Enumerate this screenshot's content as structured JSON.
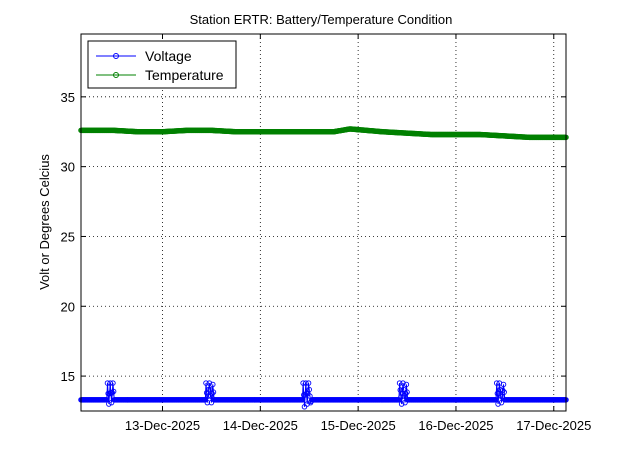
{
  "chart_data": {
    "type": "line",
    "title": "Station ERTR: Battery/Temperature Condition",
    "xlabel": "",
    "ylabel": "Volt or Degrees Celcius",
    "xlim": [
      "2025-12-12T04:00",
      "2025-12-17T03:00"
    ],
    "ylim": [
      12.5,
      39.5
    ],
    "x_ticks": [
      "13-Dec-2025",
      "14-Dec-2025",
      "15-Dec-2025",
      "16-Dec-2025",
      "17-Dec-2025"
    ],
    "y_ticks": [
      15,
      20,
      25,
      30,
      35
    ],
    "grid": true,
    "legend_position": "top-left",
    "colors": {
      "Voltage": "#0000ff",
      "Temperature": "#008000"
    },
    "series": [
      {
        "name": "Voltage",
        "baseline": 13.3,
        "points": [
          [
            "2025-12-12T04:00",
            13.3
          ],
          [
            "2025-12-12T10:20",
            13.3
          ],
          [
            "2025-12-12T10:30",
            14.5
          ],
          [
            "2025-12-12T10:50",
            13.0
          ],
          [
            "2025-12-12T11:10",
            14.5
          ],
          [
            "2025-12-12T11:30",
            13.1
          ],
          [
            "2025-12-12T11:50",
            14.5
          ],
          [
            "2025-12-12T12:10",
            13.3
          ],
          [
            "2025-12-13T10:30",
            13.3
          ],
          [
            "2025-12-13T10:40",
            14.5
          ],
          [
            "2025-12-13T11:00",
            13.1
          ],
          [
            "2025-12-13T11:30",
            14.5
          ],
          [
            "2025-12-13T12:00",
            13.1
          ],
          [
            "2025-12-13T12:20",
            14.4
          ],
          [
            "2025-12-13T12:40",
            13.3
          ],
          [
            "2025-12-14T10:20",
            13.3
          ],
          [
            "2025-12-14T10:30",
            14.5
          ],
          [
            "2025-12-14T10:50",
            12.8
          ],
          [
            "2025-12-14T11:10",
            14.5
          ],
          [
            "2025-12-14T11:30",
            13.0
          ],
          [
            "2025-12-14T11:50",
            14.5
          ],
          [
            "2025-12-14T12:20",
            13.1
          ],
          [
            "2025-12-14T12:40",
            13.3
          ],
          [
            "2025-12-15T10:00",
            13.3
          ],
          [
            "2025-12-15T10:10",
            14.5
          ],
          [
            "2025-12-15T10:40",
            13.0
          ],
          [
            "2025-12-15T11:00",
            14.5
          ],
          [
            "2025-12-15T11:30",
            13.1
          ],
          [
            "2025-12-15T11:50",
            14.4
          ],
          [
            "2025-12-15T12:10",
            13.3
          ],
          [
            "2025-12-16T09:50",
            13.3
          ],
          [
            "2025-12-16T10:00",
            14.5
          ],
          [
            "2025-12-16T10:20",
            13.0
          ],
          [
            "2025-12-16T10:40",
            14.5
          ],
          [
            "2025-12-16T11:10",
            13.1
          ],
          [
            "2025-12-16T11:40",
            14.4
          ],
          [
            "2025-12-16T12:00",
            13.3
          ],
          [
            "2025-12-17T03:00",
            13.3
          ]
        ]
      },
      {
        "name": "Temperature",
        "points": [
          [
            "2025-12-12T04:00",
            32.6
          ],
          [
            "2025-12-12T12:00",
            32.6
          ],
          [
            "2025-12-12T18:00",
            32.5
          ],
          [
            "2025-12-13T00:00",
            32.5
          ],
          [
            "2025-12-13T06:00",
            32.6
          ],
          [
            "2025-12-13T12:00",
            32.6
          ],
          [
            "2025-12-13T18:00",
            32.5
          ],
          [
            "2025-12-14T00:00",
            32.5
          ],
          [
            "2025-12-14T12:00",
            32.5
          ],
          [
            "2025-12-14T18:00",
            32.5
          ],
          [
            "2025-12-14T22:00",
            32.7
          ],
          [
            "2025-12-15T02:00",
            32.6
          ],
          [
            "2025-12-15T06:00",
            32.5
          ],
          [
            "2025-12-15T12:00",
            32.4
          ],
          [
            "2025-12-15T18:00",
            32.3
          ],
          [
            "2025-12-16T00:00",
            32.3
          ],
          [
            "2025-12-16T06:00",
            32.3
          ],
          [
            "2025-12-16T12:00",
            32.2
          ],
          [
            "2025-12-16T18:00",
            32.1
          ],
          [
            "2025-12-17T00:00",
            32.1
          ],
          [
            "2025-12-17T03:00",
            32.1
          ]
        ]
      }
    ]
  }
}
